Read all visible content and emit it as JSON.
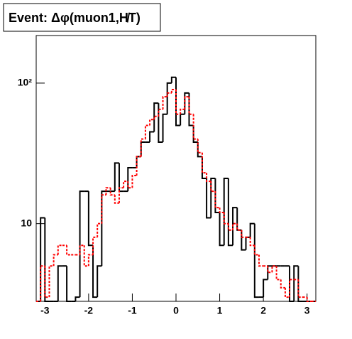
{
  "chart_data": {
    "type": "histogram",
    "title": "Event: Δφ(muon1,H̸T)",
    "bins": [
      -3.2,
      -3.1,
      -3.0,
      -2.9,
      -2.8,
      -2.7,
      -2.6,
      -2.5,
      -2.4,
      -2.3,
      -2.2,
      -2.1,
      -2.0,
      -1.9,
      -1.8,
      -1.7,
      -1.6,
      -1.5,
      -1.4,
      -1.3,
      -1.2,
      -1.1,
      -1.0,
      -0.9,
      -0.8,
      -0.7,
      -0.6,
      -0.5,
      -0.4,
      -0.3,
      -0.2,
      -0.1,
      0,
      0.1,
      0.2,
      0.3,
      0.4,
      0.5,
      0.6,
      0.7,
      0.8,
      0.9,
      1.0,
      1.1,
      1.2,
      1.3,
      1.4,
      1.5,
      1.6,
      1.7,
      1.8,
      1.9,
      2.0,
      2.1,
      2.2,
      2.3,
      2.4,
      2.5,
      2.6,
      2.7,
      2.8,
      2.9,
      3.0,
      3.1,
      3.2
    ],
    "series": [
      {
        "color": "#000000",
        "dashed": false,
        "values": [
          0,
          11,
          0,
          0,
          0,
          5,
          5,
          0,
          0,
          3,
          17,
          17,
          7,
          3,
          5,
          17,
          17,
          17,
          27,
          17,
          17,
          25,
          25,
          30,
          38,
          38,
          45,
          72,
          38,
          60,
          100,
          110,
          50,
          60,
          85,
          50,
          38,
          30,
          21,
          11,
          21,
          12,
          7,
          21,
          7,
          13,
          9,
          6.5,
          8,
          10,
          3,
          3,
          4,
          5,
          5,
          5,
          5,
          5,
          0,
          5,
          0,
          0,
          0,
          0
        ]
      },
      {
        "color": "#ff0000",
        "dashed": true,
        "values": [
          0,
          5,
          3,
          5,
          6,
          7,
          7,
          6,
          6,
          6,
          7,
          5,
          6,
          8,
          10,
          16,
          18,
          16,
          14,
          18,
          20,
          18,
          22,
          30,
          40,
          50,
          55,
          58,
          65,
          80,
          85,
          90,
          60,
          65,
          80,
          60,
          40,
          32,
          23,
          20,
          17,
          13,
          12,
          10,
          9,
          10,
          9,
          8,
          8,
          7,
          6,
          5,
          5,
          4.5,
          5,
          4,
          3.5,
          3,
          4,
          4,
          3,
          3,
          0,
          0
        ]
      }
    ],
    "xlim": [
      -3.2,
      3.2
    ],
    "xticks": [
      -3,
      -2,
      -1,
      0,
      1,
      2,
      3
    ],
    "ylim": [
      2.8,
      218
    ],
    "log_y": true,
    "yticks": [
      10,
      {
        "value": 100,
        "label": "10²"
      }
    ]
  }
}
